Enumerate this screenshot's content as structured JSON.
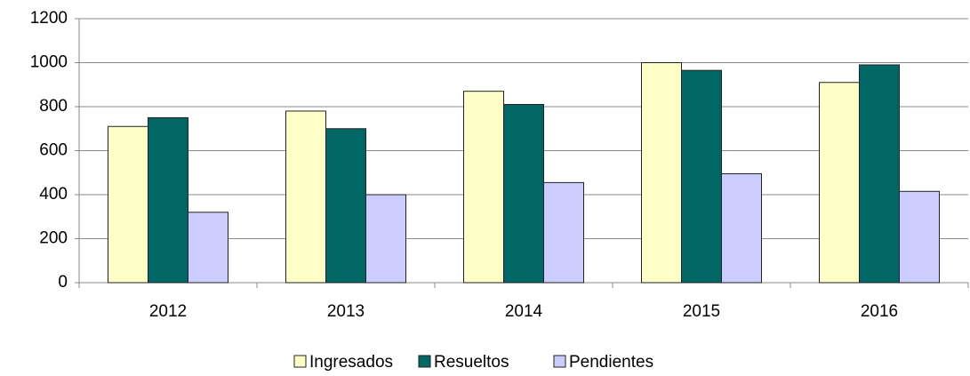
{
  "chart_data": {
    "type": "bar",
    "categories": [
      "2012",
      "2013",
      "2014",
      "2015",
      "2016"
    ],
    "series": [
      {
        "name": "Ingresados",
        "color": "#ffffc8",
        "values": [
          710,
          780,
          870,
          1000,
          910
        ]
      },
      {
        "name": "Resueltos",
        "color": "#006666",
        "values": [
          750,
          700,
          810,
          965,
          990
        ]
      },
      {
        "name": "Pendientes",
        "color": "#ccccff",
        "values": [
          320,
          400,
          455,
          495,
          415
        ]
      }
    ],
    "ylim": [
      0,
      1200
    ],
    "yticks": [
      0,
      200,
      400,
      600,
      800,
      1000,
      1200
    ],
    "grid": true,
    "legend": "bottom"
  }
}
